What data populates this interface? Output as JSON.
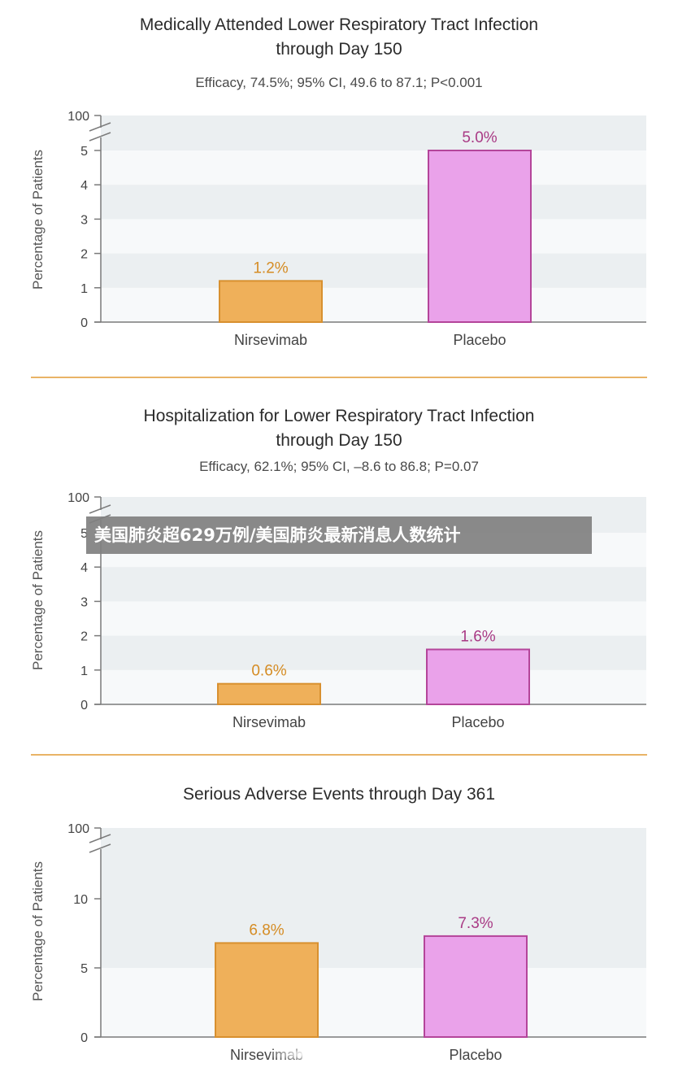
{
  "colors": {
    "nirsevimab_fill": "#efb05a",
    "nirsevimab_stroke": "#d8902f",
    "nirsevimab_label": "#d58c24",
    "placebo_fill": "#eaa2ea",
    "placebo_stroke": "#b4459a",
    "placebo_label": "#a93a85",
    "band": "#ebeff1",
    "divider": "#e9b366"
  },
  "overlay_text": "美国肺炎超629万例/美国肺炎最新消息人数统计",
  "chart_data": [
    {
      "type": "bar",
      "title_lines": [
        "Medically Attended Lower Respiratory Tract Infection",
        "through Day 150"
      ],
      "subtitle": "Efficacy, 74.5%; 95% CI, 49.6 to 87.1; P<0.001",
      "ylabel": "Percentage of Patients",
      "categories": [
        "Nirsevimab",
        "Placebo"
      ],
      "values": [
        1.2,
        5.0
      ],
      "value_labels": [
        "1.2%",
        "5.0%"
      ],
      "ylim": [
        0,
        5
      ],
      "axis_break_label": "100",
      "yticks": [
        "0",
        "1",
        "2",
        "3",
        "4",
        "5"
      ]
    },
    {
      "type": "bar",
      "title_lines": [
        "Hospitalization for Lower Respiratory Tract Infection",
        "through Day 150"
      ],
      "subtitle": "Efficacy, 62.1%; 95% CI, –8.6 to 86.8; P=0.07",
      "ylabel": "Percentage of Patients",
      "categories": [
        "Nirsevimab",
        "Placebo"
      ],
      "values": [
        0.6,
        1.6
      ],
      "value_labels": [
        "0.6%",
        "1.6%"
      ],
      "ylim": [
        0,
        5
      ],
      "axis_break_label": "100",
      "yticks": [
        "0",
        "1",
        "2",
        "3",
        "4",
        "5"
      ]
    },
    {
      "type": "bar",
      "title_lines": [
        "Serious Adverse Events through Day 361"
      ],
      "subtitle": "",
      "ylabel": "Percentage of Patients",
      "categories": [
        "Nirsevimab",
        "Placebo"
      ],
      "values": [
        6.8,
        7.3
      ],
      "value_labels": [
        "6.8%",
        "7.3%"
      ],
      "ylim": [
        0,
        10
      ],
      "axis_break_label": "100",
      "yticks": [
        "0",
        "5",
        "10"
      ]
    }
  ]
}
